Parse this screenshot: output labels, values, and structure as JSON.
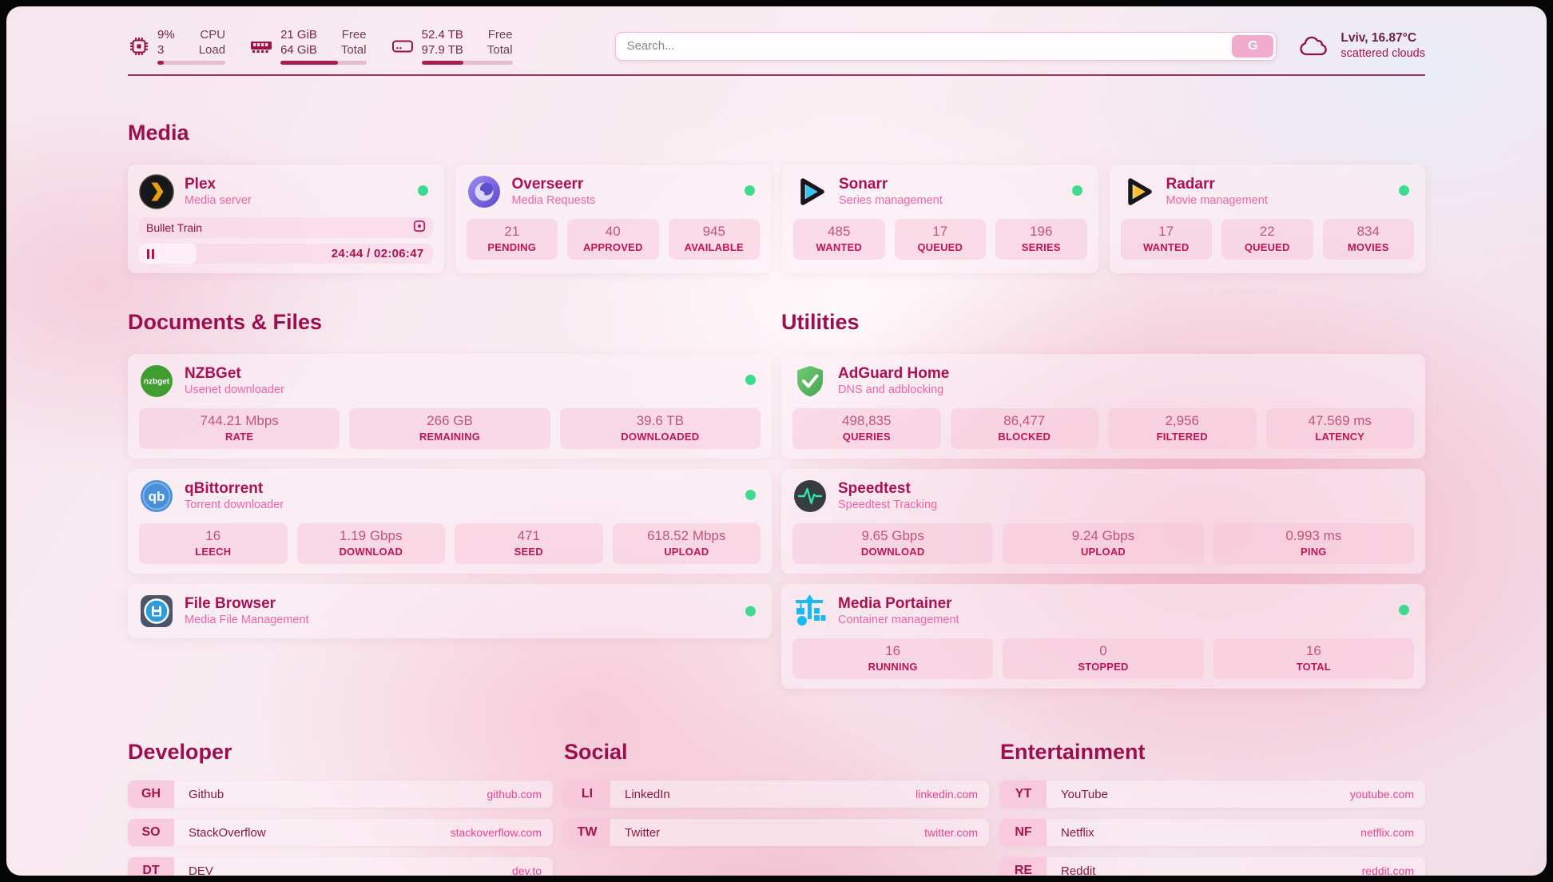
{
  "topbar": {
    "cpu": {
      "value_top": "9%",
      "value_bottom": "3",
      "label_top": "CPU",
      "label_bottom": "Load",
      "percent": 9
    },
    "ram": {
      "value_top": "21 GiB",
      "value_bottom": "64 GiB",
      "label_top": "Free",
      "label_bottom": "Total",
      "percent": 67
    },
    "disk": {
      "value_top": "52.4 TB",
      "value_bottom": "97.9 TB",
      "label_top": "Free",
      "label_bottom": "Total",
      "percent": 46
    },
    "search": {
      "placeholder": "Search...",
      "button_label": "G"
    },
    "weather": {
      "location": "Lviv, 16.87°C",
      "condition": "scattered clouds"
    }
  },
  "media": {
    "title": "Media",
    "plex": {
      "name": "Plex",
      "desc": "Media server",
      "now_playing": "Bullet Train",
      "time": "24:44 / 02:06:47",
      "progress_percent": 19.5
    },
    "cards": [
      {
        "name": "Overseerr",
        "desc": "Media Requests",
        "stats": [
          {
            "value": "21",
            "label": "PENDING"
          },
          {
            "value": "40",
            "label": "APPROVED"
          },
          {
            "value": "945",
            "label": "AVAILABLE"
          }
        ]
      },
      {
        "name": "Sonarr",
        "desc": "Series management",
        "stats": [
          {
            "value": "485",
            "label": "WANTED"
          },
          {
            "value": "17",
            "label": "QUEUED"
          },
          {
            "value": "196",
            "label": "SERIES"
          }
        ]
      },
      {
        "name": "Radarr",
        "desc": "Movie management",
        "stats": [
          {
            "value": "17",
            "label": "WANTED"
          },
          {
            "value": "22",
            "label": "QUEUED"
          },
          {
            "value": "834",
            "label": "MOVIES"
          }
        ]
      }
    ]
  },
  "documents": {
    "title": "Documents & Files",
    "nzbget": {
      "name": "NZBGet",
      "desc": "Usenet downloader",
      "icon_text": "nzbget",
      "stats": [
        {
          "value": "744.21 Mbps",
          "label": "RATE"
        },
        {
          "value": "266 GB",
          "label": "REMAINING"
        },
        {
          "value": "39.6 TB",
          "label": "DOWNLOADED"
        }
      ]
    },
    "qbittorrent": {
      "name": "qBittorrent",
      "desc": "Torrent downloader",
      "icon_text": "qb",
      "stats": [
        {
          "value": "16",
          "label": "LEECH"
        },
        {
          "value": "1.19 Gbps",
          "label": "DOWNLOAD"
        },
        {
          "value": "471",
          "label": "SEED"
        },
        {
          "value": "618.52 Mbps",
          "label": "UPLOAD"
        }
      ]
    },
    "filebrowser": {
      "name": "File Browser",
      "desc": "Media File Management"
    }
  },
  "utilities": {
    "title": "Utilities",
    "adguard": {
      "name": "AdGuard Home",
      "desc": "DNS and adblocking",
      "stats": [
        {
          "value": "498,835",
          "label": "QUERIES"
        },
        {
          "value": "86,477",
          "label": "BLOCKED"
        },
        {
          "value": "2,956",
          "label": "FILTERED"
        },
        {
          "value": "47.569 ms",
          "label": "LATENCY"
        }
      ]
    },
    "speedtest": {
      "name": "Speedtest",
      "desc": "Speedtest Tracking",
      "stats": [
        {
          "value": "9.65 Gbps",
          "label": "DOWNLOAD"
        },
        {
          "value": "9.24 Gbps",
          "label": "UPLOAD"
        },
        {
          "value": "0.993 ms",
          "label": "PING"
        }
      ]
    },
    "portainer": {
      "name": "Media Portainer",
      "desc": "Container management",
      "stats": [
        {
          "value": "16",
          "label": "RUNNING"
        },
        {
          "value": "0",
          "label": "STOPPED"
        },
        {
          "value": "16",
          "label": "TOTAL"
        }
      ]
    }
  },
  "bookmarks": [
    {
      "title": "Developer",
      "items": [
        {
          "abbr": "GH",
          "name": "Github",
          "url": "github.com"
        },
        {
          "abbr": "SO",
          "name": "StackOverflow",
          "url": "stackoverflow.com"
        },
        {
          "abbr": "DT",
          "name": "DEV",
          "url": "dev.to"
        }
      ]
    },
    {
      "title": "Social",
      "items": [
        {
          "abbr": "LI",
          "name": "LinkedIn",
          "url": "linkedin.com"
        },
        {
          "abbr": "TW",
          "name": "Twitter",
          "url": "twitter.com"
        }
      ]
    },
    {
      "title": "Entertainment",
      "items": [
        {
          "abbr": "YT",
          "name": "YouTube",
          "url": "youtube.com"
        },
        {
          "abbr": "NF",
          "name": "Netflix",
          "url": "netflix.com"
        },
        {
          "abbr": "RE",
          "name": "Reddit",
          "url": "reddit.com"
        }
      ]
    }
  ],
  "colors": {
    "accent": "#b01355",
    "heading": "#9c0f4e",
    "status_green": "#3edb8f"
  }
}
